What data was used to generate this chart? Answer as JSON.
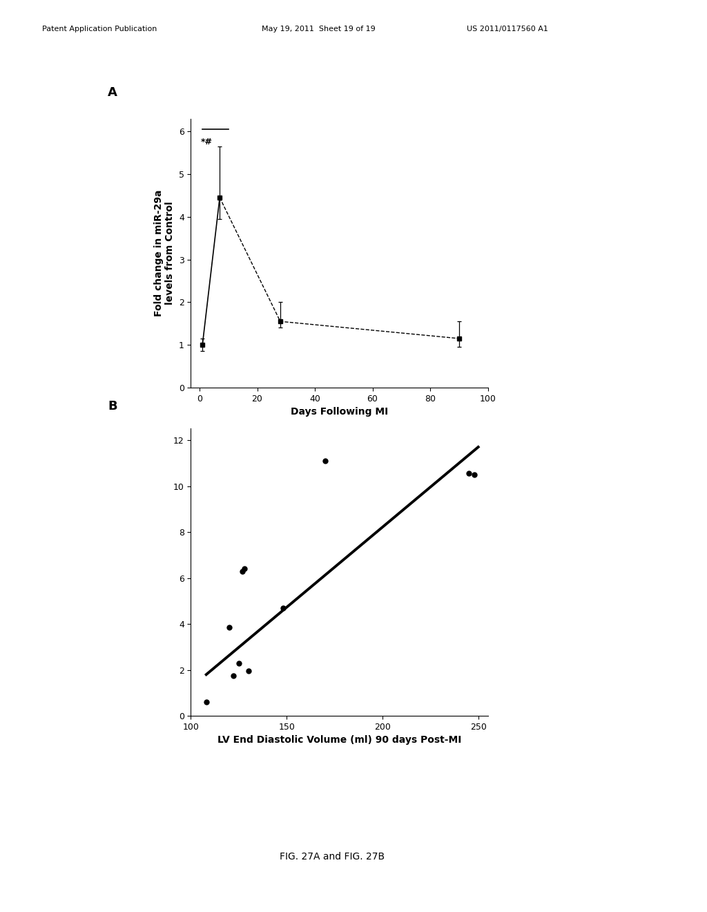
{
  "panel_A": {
    "label": "A",
    "x": [
      1,
      7,
      28,
      90
    ],
    "y": [
      1.0,
      4.45,
      1.55,
      1.15
    ],
    "yerr_upper": [
      0.15,
      1.2,
      0.45,
      0.4
    ],
    "yerr_lower": [
      0.15,
      0.5,
      0.15,
      0.2
    ],
    "xlabel": "Days Following MI",
    "ylabel": "Fold change in miR-29a\nlevels from Control",
    "xlim": [
      -3,
      100
    ],
    "ylim": [
      0,
      6.3
    ],
    "xticks": [
      0,
      20,
      40,
      60,
      80,
      100
    ],
    "yticks": [
      0,
      1,
      2,
      3,
      4,
      5,
      6
    ],
    "annotation": "*#",
    "bracket_y": 6.05,
    "bracket_x1": 1,
    "bracket_x2": 10
  },
  "panel_B": {
    "label": "B",
    "scatter_x": [
      108,
      120,
      122,
      125,
      127,
      128,
      130,
      148,
      170,
      245,
      248
    ],
    "scatter_y": [
      0.6,
      3.85,
      1.75,
      2.3,
      6.3,
      6.4,
      1.95,
      4.7,
      11.1,
      10.55,
      10.5
    ],
    "line_x": [
      108,
      250
    ],
    "line_y": [
      1.8,
      11.7
    ],
    "xlabel": "LV End Diastolic Volume (ml) 90 days Post-MI",
    "xlim": [
      100,
      255
    ],
    "ylim": [
      0,
      12.5
    ],
    "xticks": [
      100,
      150,
      200,
      250
    ],
    "yticks": [
      0,
      2,
      4,
      6,
      8,
      10,
      12
    ]
  },
  "caption": "FIG. 27A and FIG. 27B",
  "header_left": "Patent Application Publication",
  "header_mid": "May 19, 2011  Sheet 19 of 19",
  "header_right": "US 2011/0117560 A1",
  "bg_color": "#ffffff",
  "fontsize_label": 10,
  "fontsize_tick": 9,
  "fontsize_panel": 13,
  "fontsize_caption": 10,
  "fontsize_header": 8
}
